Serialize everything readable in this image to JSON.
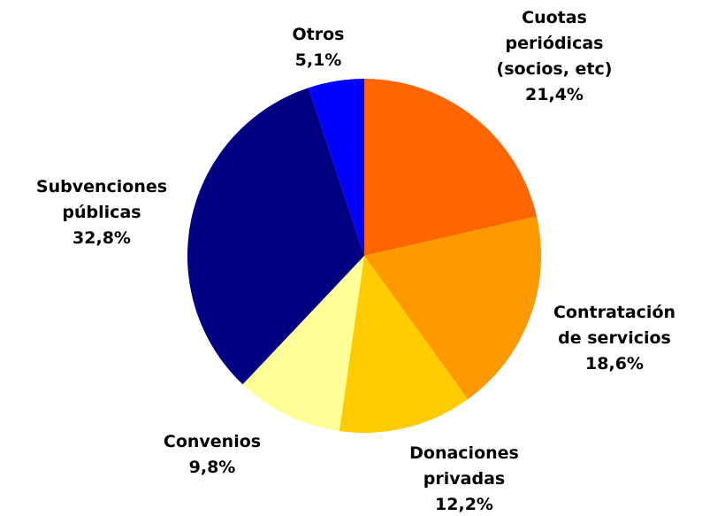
{
  "chart_data": {
    "type": "pie",
    "categories": [
      "Cuotas\nperiódicas\n(socios, etc)",
      "Contratación\nde servicios",
      "Donaciones\nprivadas",
      "Convenios",
      "Subvenciones\npúblicas",
      "Otros"
    ],
    "values": [
      21.4,
      18.6,
      12.2,
      9.8,
      32.8,
      5.1
    ],
    "value_labels": [
      "21,4%",
      "18,6%",
      "12,2%",
      "9,8%",
      "32,8%",
      "5,1%"
    ],
    "colors": [
      "#ff6600",
      "#ff9900",
      "#ffcc00",
      "#ffff99",
      "#000080",
      "#0000ff"
    ]
  }
}
